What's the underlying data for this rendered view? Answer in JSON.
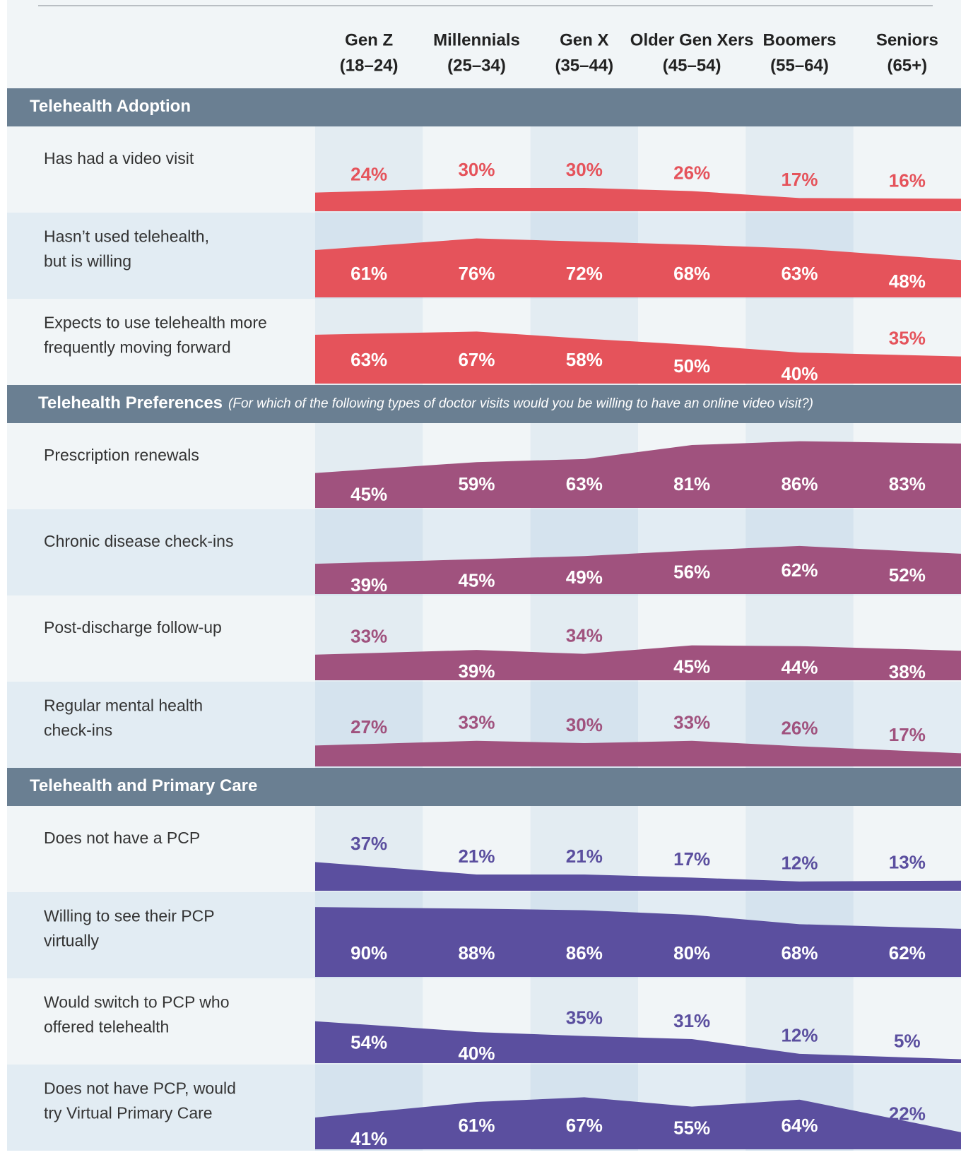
{
  "chart_data": {
    "type": "area-table",
    "columns": [
      [
        "Gen Z",
        "(18–24)"
      ],
      [
        "Millennials",
        "(25–34)"
      ],
      [
        "Gen X",
        "(35–44)"
      ],
      [
        "Older Gen Xers",
        "(45–54)"
      ],
      [
        "Boomers",
        "(55–64)"
      ],
      [
        "Seniors",
        "(65+)"
      ]
    ],
    "sections": [
      {
        "title": "Telehealth Adoption",
        "color": "#e5535b",
        "rows": [
          {
            "label": [
              "Has had a video visit"
            ],
            "values": [
              24,
              30,
              30,
              26,
              17,
              16
            ],
            "value_labels": [
              "24%",
              "30%",
              "30%",
              "26%",
              "17%",
              "16%"
            ]
          },
          {
            "label": [
              "Hasn’t used telehealth,",
              "but is willing"
            ],
            "values": [
              61,
              76,
              72,
              68,
              63,
              48
            ],
            "value_labels": [
              "61%",
              "76%",
              "72%",
              "68%",
              "63%",
              "48%"
            ]
          },
          {
            "label": [
              "Expects to use telehealth more",
              "frequently moving forward"
            ],
            "values": [
              63,
              67,
              58,
              50,
              40,
              35
            ],
            "value_labels": [
              "63%",
              "67%",
              "58%",
              "50%",
              "40%",
              "35%"
            ]
          }
        ]
      },
      {
        "title": "Telehealth Preferences",
        "subtitle": "(For which of the following types of doctor visits would you be willing to have an online video visit?)",
        "color": "#a0527e",
        "rows": [
          {
            "label": [
              "Prescription renewals"
            ],
            "values": [
              45,
              59,
              63,
              81,
              86,
              83
            ],
            "value_labels": [
              "45%",
              "59%",
              "63%",
              "81%",
              "86%",
              "83%"
            ]
          },
          {
            "label": [
              "Chronic disease check-ins"
            ],
            "values": [
              39,
              45,
              49,
              56,
              62,
              52
            ],
            "value_labels": [
              "39%",
              "45%",
              "49%",
              "56%",
              "62%",
              "52%"
            ]
          },
          {
            "label": [
              "Post-discharge follow-up"
            ],
            "values": [
              33,
              39,
              34,
              45,
              44,
              38
            ],
            "value_labels": [
              "33%",
              "39%",
              "34%",
              "45%",
              "44%",
              "38%"
            ]
          },
          {
            "label": [
              "Regular mental health",
              "check-ins"
            ],
            "values": [
              27,
              33,
              30,
              33,
              26,
              17
            ],
            "value_labels": [
              "27%",
              "33%",
              "30%",
              "33%",
              "26%",
              "17%"
            ]
          }
        ]
      },
      {
        "title": "Telehealth and Primary Care",
        "color": "#5b4f9f",
        "rows": [
          {
            "label": [
              "Does not have a PCP"
            ],
            "values": [
              37,
              21,
              21,
              17,
              12,
              13
            ],
            "value_labels": [
              "37%",
              "21%",
              "21%",
              "17%",
              "12%",
              "13%"
            ]
          },
          {
            "label": [
              "Willing to see their PCP",
              "virtually"
            ],
            "values": [
              90,
              88,
              86,
              80,
              68,
              62
            ],
            "value_labels": [
              "90%",
              "88%",
              "86%",
              "80%",
              "68%",
              "62%"
            ]
          },
          {
            "label": [
              "Would switch to PCP who",
              "offered telehealth"
            ],
            "values": [
              54,
              40,
              35,
              31,
              12,
              5
            ],
            "value_labels": [
              "54%",
              "40%",
              "35%",
              "31%",
              "12%",
              "5%"
            ]
          },
          {
            "label": [
              "Does not have PCP, would",
              "try Virtual Primary Care"
            ],
            "values": [
              41,
              61,
              67,
              55,
              64,
              22
            ],
            "value_labels": [
              "41%",
              "61%",
              "67%",
              "55%",
              "64%",
              "22%"
            ]
          }
        ]
      }
    ]
  }
}
